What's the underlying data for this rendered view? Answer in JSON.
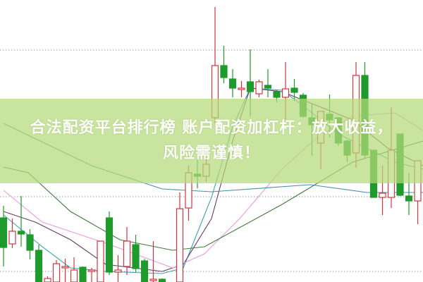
{
  "banner": {
    "line1": "合法配资平台排行榜 账户配资加杠杆：放大收益，",
    "line2": "风险需谨慎！"
  },
  "colors": {
    "up": "#d8343c",
    "down": "#1f9a2c",
    "banner": "#b4da78",
    "grid": "#9a9a9a"
  },
  "chart_data": {
    "type": "candlestick",
    "title": "",
    "grid": true,
    "ylim": [
      5,
      45
    ],
    "candles": [
      {
        "o": 14.1,
        "h": 15.8,
        "l": 7.2,
        "c": 9.9
      },
      {
        "o": 10.4,
        "h": 14.0,
        "l": 9.8,
        "c": 12.2
      },
      {
        "o": 12.2,
        "h": 17.2,
        "l": 10.0,
        "c": 11.8
      },
      {
        "o": 11.7,
        "h": 12.5,
        "l": 8.2,
        "c": 9.5
      },
      {
        "o": 9.5,
        "h": 10.3,
        "l": 5.0,
        "c": 5.0
      },
      {
        "o": 5.0,
        "h": 5.8,
        "l": 5.0,
        "c": 5.5
      },
      {
        "o": 5.0,
        "h": 8.1,
        "l": 5.0,
        "c": 7.6
      },
      {
        "o": 7.0,
        "h": 8.3,
        "l": 5.0,
        "c": 7.2
      },
      {
        "o": 5.0,
        "h": 8.5,
        "l": 5.0,
        "c": 6.7
      },
      {
        "o": 7.1,
        "h": 7.2,
        "l": 5.0,
        "c": 5.0
      },
      {
        "o": 6.5,
        "h": 7.0,
        "l": 5.0,
        "c": 6.7
      },
      {
        "o": 5.0,
        "h": 10.8,
        "l": 5.0,
        "c": 10.8
      },
      {
        "o": 14.1,
        "h": 15.0,
        "l": 6.0,
        "c": 6.4
      },
      {
        "o": 6.4,
        "h": 8.8,
        "l": 5.0,
        "c": 6.7
      },
      {
        "o": 7.2,
        "h": 12.8,
        "l": 6.0,
        "c": 10.8
      },
      {
        "o": 10.3,
        "h": 11.7,
        "l": 6.3,
        "c": 6.9
      },
      {
        "o": 8.0,
        "h": 8.3,
        "l": 5.0,
        "c": 5.0
      },
      {
        "o": 5.2,
        "h": 10.8,
        "l": 5.0,
        "c": 5.4
      },
      {
        "o": 5.4,
        "h": 5.5,
        "l": 5.0,
        "c": 5.0
      },
      null,
      {
        "o": 5.0,
        "h": 17.7,
        "l": 5.0,
        "c": 15.4
      },
      {
        "o": 15.5,
        "h": 21.5,
        "l": 13.7,
        "c": 20.5
      },
      {
        "o": 20.3,
        "h": 22.5,
        "l": 18.3,
        "c": 20.0
      },
      {
        "o": 20.0,
        "h": 22.7,
        "l": 19.2,
        "c": 21.7
      },
      {
        "o": 28.3,
        "h": 44.0,
        "l": 27.5,
        "c": 35.7
      },
      {
        "o": 35.7,
        "h": 38.5,
        "l": 33.2,
        "c": 34.0
      },
      {
        "o": 33.8,
        "h": 35.2,
        "l": 31.2,
        "c": 32.5
      },
      {
        "o": 32.3,
        "h": 33.5,
        "l": 31.2,
        "c": 32.5
      },
      {
        "o": 33.4,
        "h": 38.0,
        "l": 28.5,
        "c": 32.0
      },
      {
        "o": 31.7,
        "h": 33.7,
        "l": 31.2,
        "c": 33.4
      },
      {
        "o": 32.9,
        "h": 35.2,
        "l": 31.2,
        "c": 32.5
      },
      {
        "o": 32.0,
        "h": 32.2,
        "l": 30.5,
        "c": 31.2
      },
      {
        "o": 31.2,
        "h": 36.2,
        "l": 28.0,
        "c": 32.4
      },
      {
        "o": 32.5,
        "h": 33.8,
        "l": 30.7,
        "c": 31.9
      },
      {
        "o": 31.5,
        "h": 31.8,
        "l": 28.3,
        "c": 28.5
      },
      {
        "o": 28.3,
        "h": 30.3,
        "l": 22.9,
        "c": 27.3
      },
      {
        "o": 24.7,
        "h": 29.2,
        "l": 21.0,
        "c": 29.2
      },
      {
        "o": 28.8,
        "h": 31.6,
        "l": 25.5,
        "c": 28.0
      },
      {
        "o": 28.3,
        "h": 28.3,
        "l": 24.3,
        "c": 24.7
      },
      {
        "o": 25.0,
        "h": 25.2,
        "l": 22.0,
        "c": 23.0
      },
      {
        "o": 23.3,
        "h": 36.2,
        "l": 21.2,
        "c": 34.3
      },
      {
        "o": 34.3,
        "h": 36.2,
        "l": 22.5,
        "c": 23.0
      },
      {
        "o": 23.7,
        "h": 23.7,
        "l": 17.0,
        "c": 17.0
      },
      {
        "o": 17.0,
        "h": 21.5,
        "l": 14.5,
        "c": 17.6
      },
      {
        "o": 17.0,
        "h": 29.8,
        "l": 15.5,
        "c": 23.7
      },
      {
        "o": 26.0,
        "h": 26.0,
        "l": 17.2,
        "c": 17.3
      },
      {
        "o": 17.2,
        "h": 20.5,
        "l": 14.5,
        "c": 16.5
      },
      {
        "o": 16.5,
        "h": 22.2,
        "l": 13.2,
        "c": 22.2
      }
    ],
    "moving_averages": [
      {
        "color": "#3aa0b8",
        "points": [
          [
            0,
            14.5
          ],
          [
            4.4,
            10
          ],
          [
            7.6,
            7
          ],
          [
            11.6,
            6.5
          ],
          [
            18,
            6.2
          ],
          [
            20.4,
            7
          ],
          [
            23.6,
            17
          ],
          [
            26,
            27
          ],
          [
            28,
            32.5
          ],
          [
            31.6,
            32.2
          ],
          [
            34,
            30
          ],
          [
            38,
            26
          ],
          [
            41.2,
            24
          ],
          [
            44.4,
            22
          ],
          [
            47.6,
            21
          ]
        ]
      },
      {
        "color": "#6a3a6a",
        "points": [
          [
            0,
            15
          ],
          [
            3.6,
            13.5
          ],
          [
            7.6,
            11
          ],
          [
            11.6,
            7.5
          ],
          [
            18,
            6.5
          ],
          [
            20.4,
            7.5
          ],
          [
            23.6,
            14
          ],
          [
            26,
            25
          ],
          [
            28,
            32.5
          ],
          [
            31.6,
            32
          ],
          [
            35.6,
            30
          ],
          [
            39.6,
            28
          ],
          [
            43.6,
            24
          ],
          [
            47.6,
            21.5
          ]
        ]
      },
      {
        "color": "#e79be0",
        "points": [
          [
            0,
            18
          ],
          [
            4.4,
            13.5
          ],
          [
            11.6,
            10.5
          ],
          [
            19.2,
            7
          ],
          [
            22.8,
            9
          ],
          [
            26.8,
            14
          ],
          [
            31.6,
            21
          ],
          [
            35.6,
            25.5
          ],
          [
            39.6,
            28.5
          ],
          [
            44.4,
            29
          ],
          [
            47.6,
            26.5
          ]
        ]
      },
      {
        "color": "#3f7a3a",
        "points": [
          [
            0,
            21.3
          ],
          [
            2.8,
            20.5
          ],
          [
            7.6,
            15
          ],
          [
            13.2,
            11
          ],
          [
            19.2,
            9.5
          ],
          [
            22.8,
            10
          ],
          [
            31.6,
            16
          ],
          [
            39.6,
            22
          ],
          [
            47.6,
            25
          ]
        ]
      },
      {
        "color": "#4a8fa8",
        "points": [
          [
            0,
            27.5
          ],
          [
            10,
            21.5
          ],
          [
            18,
            18.2
          ],
          [
            23.6,
            17.8
          ],
          [
            34.8,
            18.8
          ],
          [
            41.2,
            17.7
          ],
          [
            47.6,
            17.7
          ]
        ]
      }
    ]
  }
}
